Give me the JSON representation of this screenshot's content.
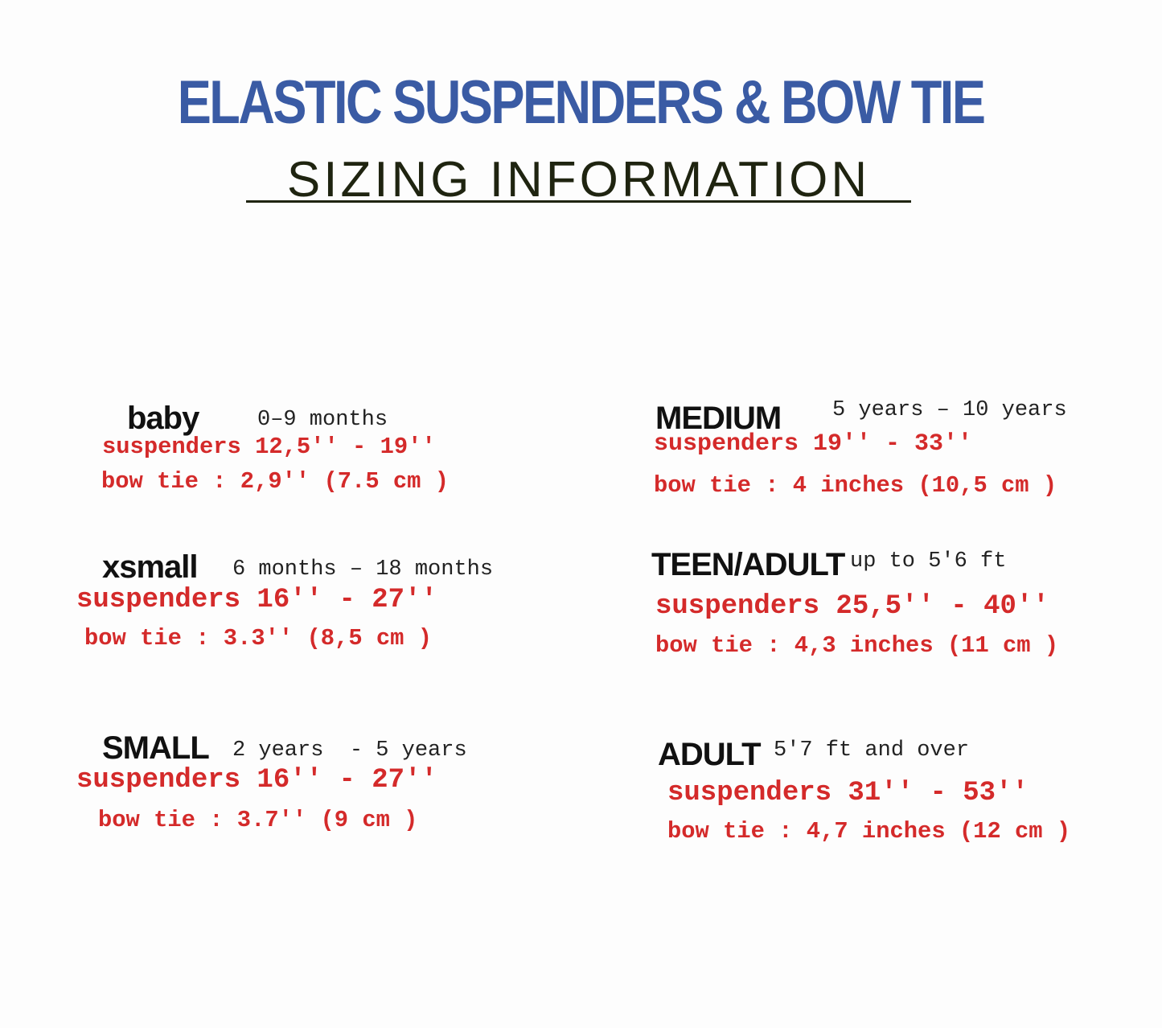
{
  "header": {
    "title": "ELASTIC SUSPENDERS & BOW TIE",
    "subtitle": "SIZING INFORMATION"
  },
  "colors": {
    "title": "#3a5ba4",
    "subtitle": "#1f2410",
    "sizes": "#d42a2a",
    "heading": "#111111"
  },
  "sizes": [
    {
      "name": "baby",
      "age": "0–9 months",
      "suspenders": "suspenders 12,5'' - 19''",
      "bow_tie": "bow tie : 2,9'' (7.5 cm )"
    },
    {
      "name": "xsmall",
      "age": "6 months – 18 months",
      "suspenders": "suspenders 16'' - 27''",
      "bow_tie": "bow tie : 3.3'' (8,5 cm )"
    },
    {
      "name": "SMALL",
      "age": "2 years  - 5 years",
      "suspenders": "suspenders 16'' - 27''",
      "bow_tie": "bow tie : 3.7'' (9 cm )"
    },
    {
      "name": "MEDIUM",
      "age": "5 years – 10 years",
      "suspenders": "suspenders 19'' - 33''",
      "bow_tie": "bow tie : 4 inches (10,5 cm )"
    },
    {
      "name": "TEEN/ADULT",
      "age": "up to 5'6 ft",
      "suspenders": "suspenders 25,5'' - 40''",
      "bow_tie": "bow tie : 4,3 inches (11 cm )"
    },
    {
      "name": "ADULT",
      "age": "5'7 ft and over",
      "suspenders": "suspenders 31'' - 53''",
      "bow_tie": "bow tie : 4,7 inches (12 cm )"
    }
  ]
}
